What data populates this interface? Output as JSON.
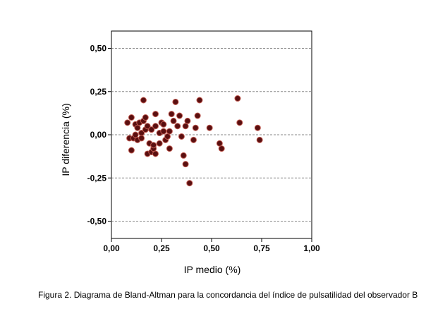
{
  "chart_data": {
    "type": "scatter",
    "xlabel": "IP medio (%)",
    "ylabel": "IP diferencia (%)",
    "xlim": [
      0,
      1
    ],
    "ylim": [
      -0.6,
      0.6
    ],
    "x_ticks": [
      0,
      0.25,
      0.5,
      0.75,
      1
    ],
    "x_tick_labels": [
      "0,00",
      "0,25",
      "0,50",
      "0,75",
      "1,00"
    ],
    "y_ticks": [
      -0.5,
      -0.25,
      0,
      0.25,
      0.5
    ],
    "y_tick_labels": [
      "-0,50",
      "-0,25",
      "0,00",
      "0,25",
      "0,50"
    ],
    "reference_lines_y": [
      -0.5,
      -0.25,
      0,
      0.25,
      0.5
    ],
    "grid": "dashed horizontal",
    "marker_color": "#5a0f10",
    "marker_edge_color": "#c05a50",
    "points": [
      {
        "x": 0.08,
        "y": 0.07
      },
      {
        "x": 0.09,
        "y": -0.02
      },
      {
        "x": 0.1,
        "y": 0.1
      },
      {
        "x": 0.1,
        "y": -0.09
      },
      {
        "x": 0.11,
        "y": -0.02
      },
      {
        "x": 0.12,
        "y": 0.0
      },
      {
        "x": 0.12,
        "y": 0.06
      },
      {
        "x": 0.13,
        "y": 0.04
      },
      {
        "x": 0.13,
        "y": -0.03
      },
      {
        "x": 0.14,
        "y": 0.07
      },
      {
        "x": 0.15,
        "y": 0.01
      },
      {
        "x": 0.15,
        "y": -0.02
      },
      {
        "x": 0.16,
        "y": 0.2
      },
      {
        "x": 0.16,
        "y": 0.08
      },
      {
        "x": 0.17,
        "y": 0.03
      },
      {
        "x": 0.17,
        "y": 0.1
      },
      {
        "x": 0.18,
        "y": 0.05
      },
      {
        "x": 0.18,
        "y": -0.11
      },
      {
        "x": 0.19,
        "y": -0.05
      },
      {
        "x": 0.2,
        "y": -0.1
      },
      {
        "x": 0.2,
        "y": 0.03
      },
      {
        "x": 0.21,
        "y": -0.08
      },
      {
        "x": 0.21,
        "y": -0.06
      },
      {
        "x": 0.22,
        "y": 0.12
      },
      {
        "x": 0.22,
        "y": 0.05
      },
      {
        "x": 0.22,
        "y": -0.11
      },
      {
        "x": 0.24,
        "y": 0.01
      },
      {
        "x": 0.24,
        "y": -0.05
      },
      {
        "x": 0.25,
        "y": 0.07
      },
      {
        "x": 0.26,
        "y": 0.06
      },
      {
        "x": 0.26,
        "y": 0.02
      },
      {
        "x": 0.27,
        "y": -0.03
      },
      {
        "x": 0.28,
        "y": -0.01
      },
      {
        "x": 0.29,
        "y": 0.02
      },
      {
        "x": 0.29,
        "y": -0.08
      },
      {
        "x": 0.3,
        "y": 0.12
      },
      {
        "x": 0.31,
        "y": 0.08
      },
      {
        "x": 0.32,
        "y": 0.19
      },
      {
        "x": 0.33,
        "y": 0.05
      },
      {
        "x": 0.34,
        "y": 0.11
      },
      {
        "x": 0.35,
        "y": -0.01
      },
      {
        "x": 0.36,
        "y": -0.12
      },
      {
        "x": 0.37,
        "y": -0.17
      },
      {
        "x": 0.37,
        "y": 0.05
      },
      {
        "x": 0.38,
        "y": 0.08
      },
      {
        "x": 0.39,
        "y": -0.28
      },
      {
        "x": 0.41,
        "y": -0.03
      },
      {
        "x": 0.42,
        "y": 0.04
      },
      {
        "x": 0.43,
        "y": 0.11
      },
      {
        "x": 0.44,
        "y": 0.2
      },
      {
        "x": 0.49,
        "y": 0.04
      },
      {
        "x": 0.54,
        "y": -0.05
      },
      {
        "x": 0.55,
        "y": -0.08
      },
      {
        "x": 0.63,
        "y": 0.21
      },
      {
        "x": 0.64,
        "y": 0.07
      },
      {
        "x": 0.73,
        "y": 0.04
      },
      {
        "x": 0.74,
        "y": -0.03
      }
    ]
  },
  "caption": {
    "text": "Figura 2. Diagrama de Bland-Altman para la concordancia del índice de pulsatilidad del observador B"
  }
}
